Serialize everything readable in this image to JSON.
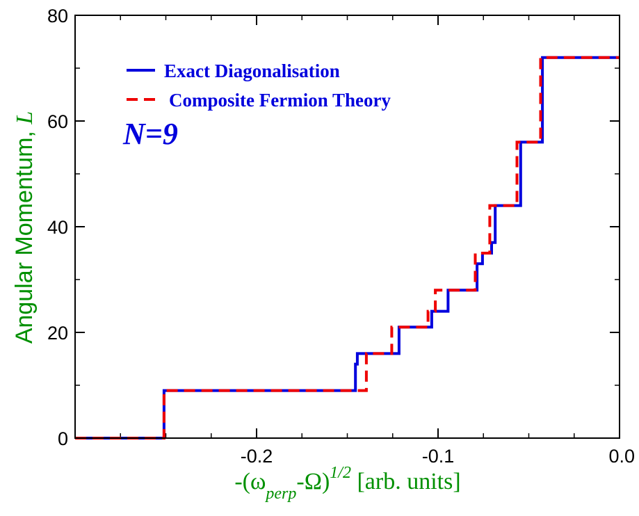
{
  "chart_data": {
    "type": "line",
    "title": "",
    "xlabel": {
      "prefix": "-(",
      "omega": "ω",
      "perp": "perp",
      "minus_Omega": "-Ω",
      "close": ")",
      "exponent": "1/2",
      "units": " [arb. units]"
    },
    "ylabel": {
      "text": "Angular Momentum, ",
      "symbol": "L"
    },
    "xlim": [
      -0.3,
      0.0
    ],
    "ylim": [
      0,
      80
    ],
    "xticks": [
      {
        "value": -0.2,
        "label": "-0.2"
      },
      {
        "value": -0.1,
        "label": "-0.1"
      },
      {
        "value": 0.0,
        "label": "0.0"
      }
    ],
    "yticks": [
      {
        "value": 0,
        "label": "0"
      },
      {
        "value": 20,
        "label": "20"
      },
      {
        "value": 40,
        "label": "40"
      },
      {
        "value": 60,
        "label": "60"
      },
      {
        "value": 80,
        "label": "80"
      }
    ],
    "x_minor_step": 0.025,
    "y_minor_step": 10,
    "legend_position": "top-left",
    "annotation": "N=9",
    "series": [
      {
        "name": "Exact Diagonalisation",
        "color": "#0000dd",
        "style": "solid",
        "points": [
          [
            -0.3,
            0
          ],
          [
            -0.251,
            0
          ],
          [
            -0.251,
            9
          ],
          [
            -0.1455,
            9
          ],
          [
            -0.1455,
            14
          ],
          [
            -0.1445,
            14
          ],
          [
            -0.1445,
            16
          ],
          [
            -0.1215,
            16
          ],
          [
            -0.1215,
            21
          ],
          [
            -0.1035,
            21
          ],
          [
            -0.1035,
            24
          ],
          [
            -0.0945,
            24
          ],
          [
            -0.0945,
            28
          ],
          [
            -0.0785,
            28
          ],
          [
            -0.0785,
            33
          ],
          [
            -0.0755,
            33
          ],
          [
            -0.0755,
            35
          ],
          [
            -0.0705,
            35
          ],
          [
            -0.0705,
            37
          ],
          [
            -0.0685,
            37
          ],
          [
            -0.0685,
            44
          ],
          [
            -0.0545,
            44
          ],
          [
            -0.0545,
            56
          ],
          [
            -0.0425,
            56
          ],
          [
            -0.0425,
            72
          ],
          [
            0.0,
            72
          ]
        ]
      },
      {
        "name": "Composite Fermion Theory",
        "color": "#ee0000",
        "style": "dashed",
        "points": [
          [
            -0.3,
            0
          ],
          [
            -0.251,
            0
          ],
          [
            -0.251,
            9
          ],
          [
            -0.1395,
            9
          ],
          [
            -0.1395,
            16
          ],
          [
            -0.1255,
            16
          ],
          [
            -0.1255,
            21
          ],
          [
            -0.1055,
            21
          ],
          [
            -0.1055,
            24
          ],
          [
            -0.1015,
            24
          ],
          [
            -0.1015,
            28
          ],
          [
            -0.0795,
            28
          ],
          [
            -0.0795,
            35
          ],
          [
            -0.0715,
            35
          ],
          [
            -0.0715,
            44
          ],
          [
            -0.0565,
            44
          ],
          [
            -0.0565,
            56
          ],
          [
            -0.0435,
            56
          ],
          [
            -0.0435,
            72
          ],
          [
            0.0,
            72
          ]
        ]
      }
    ]
  }
}
